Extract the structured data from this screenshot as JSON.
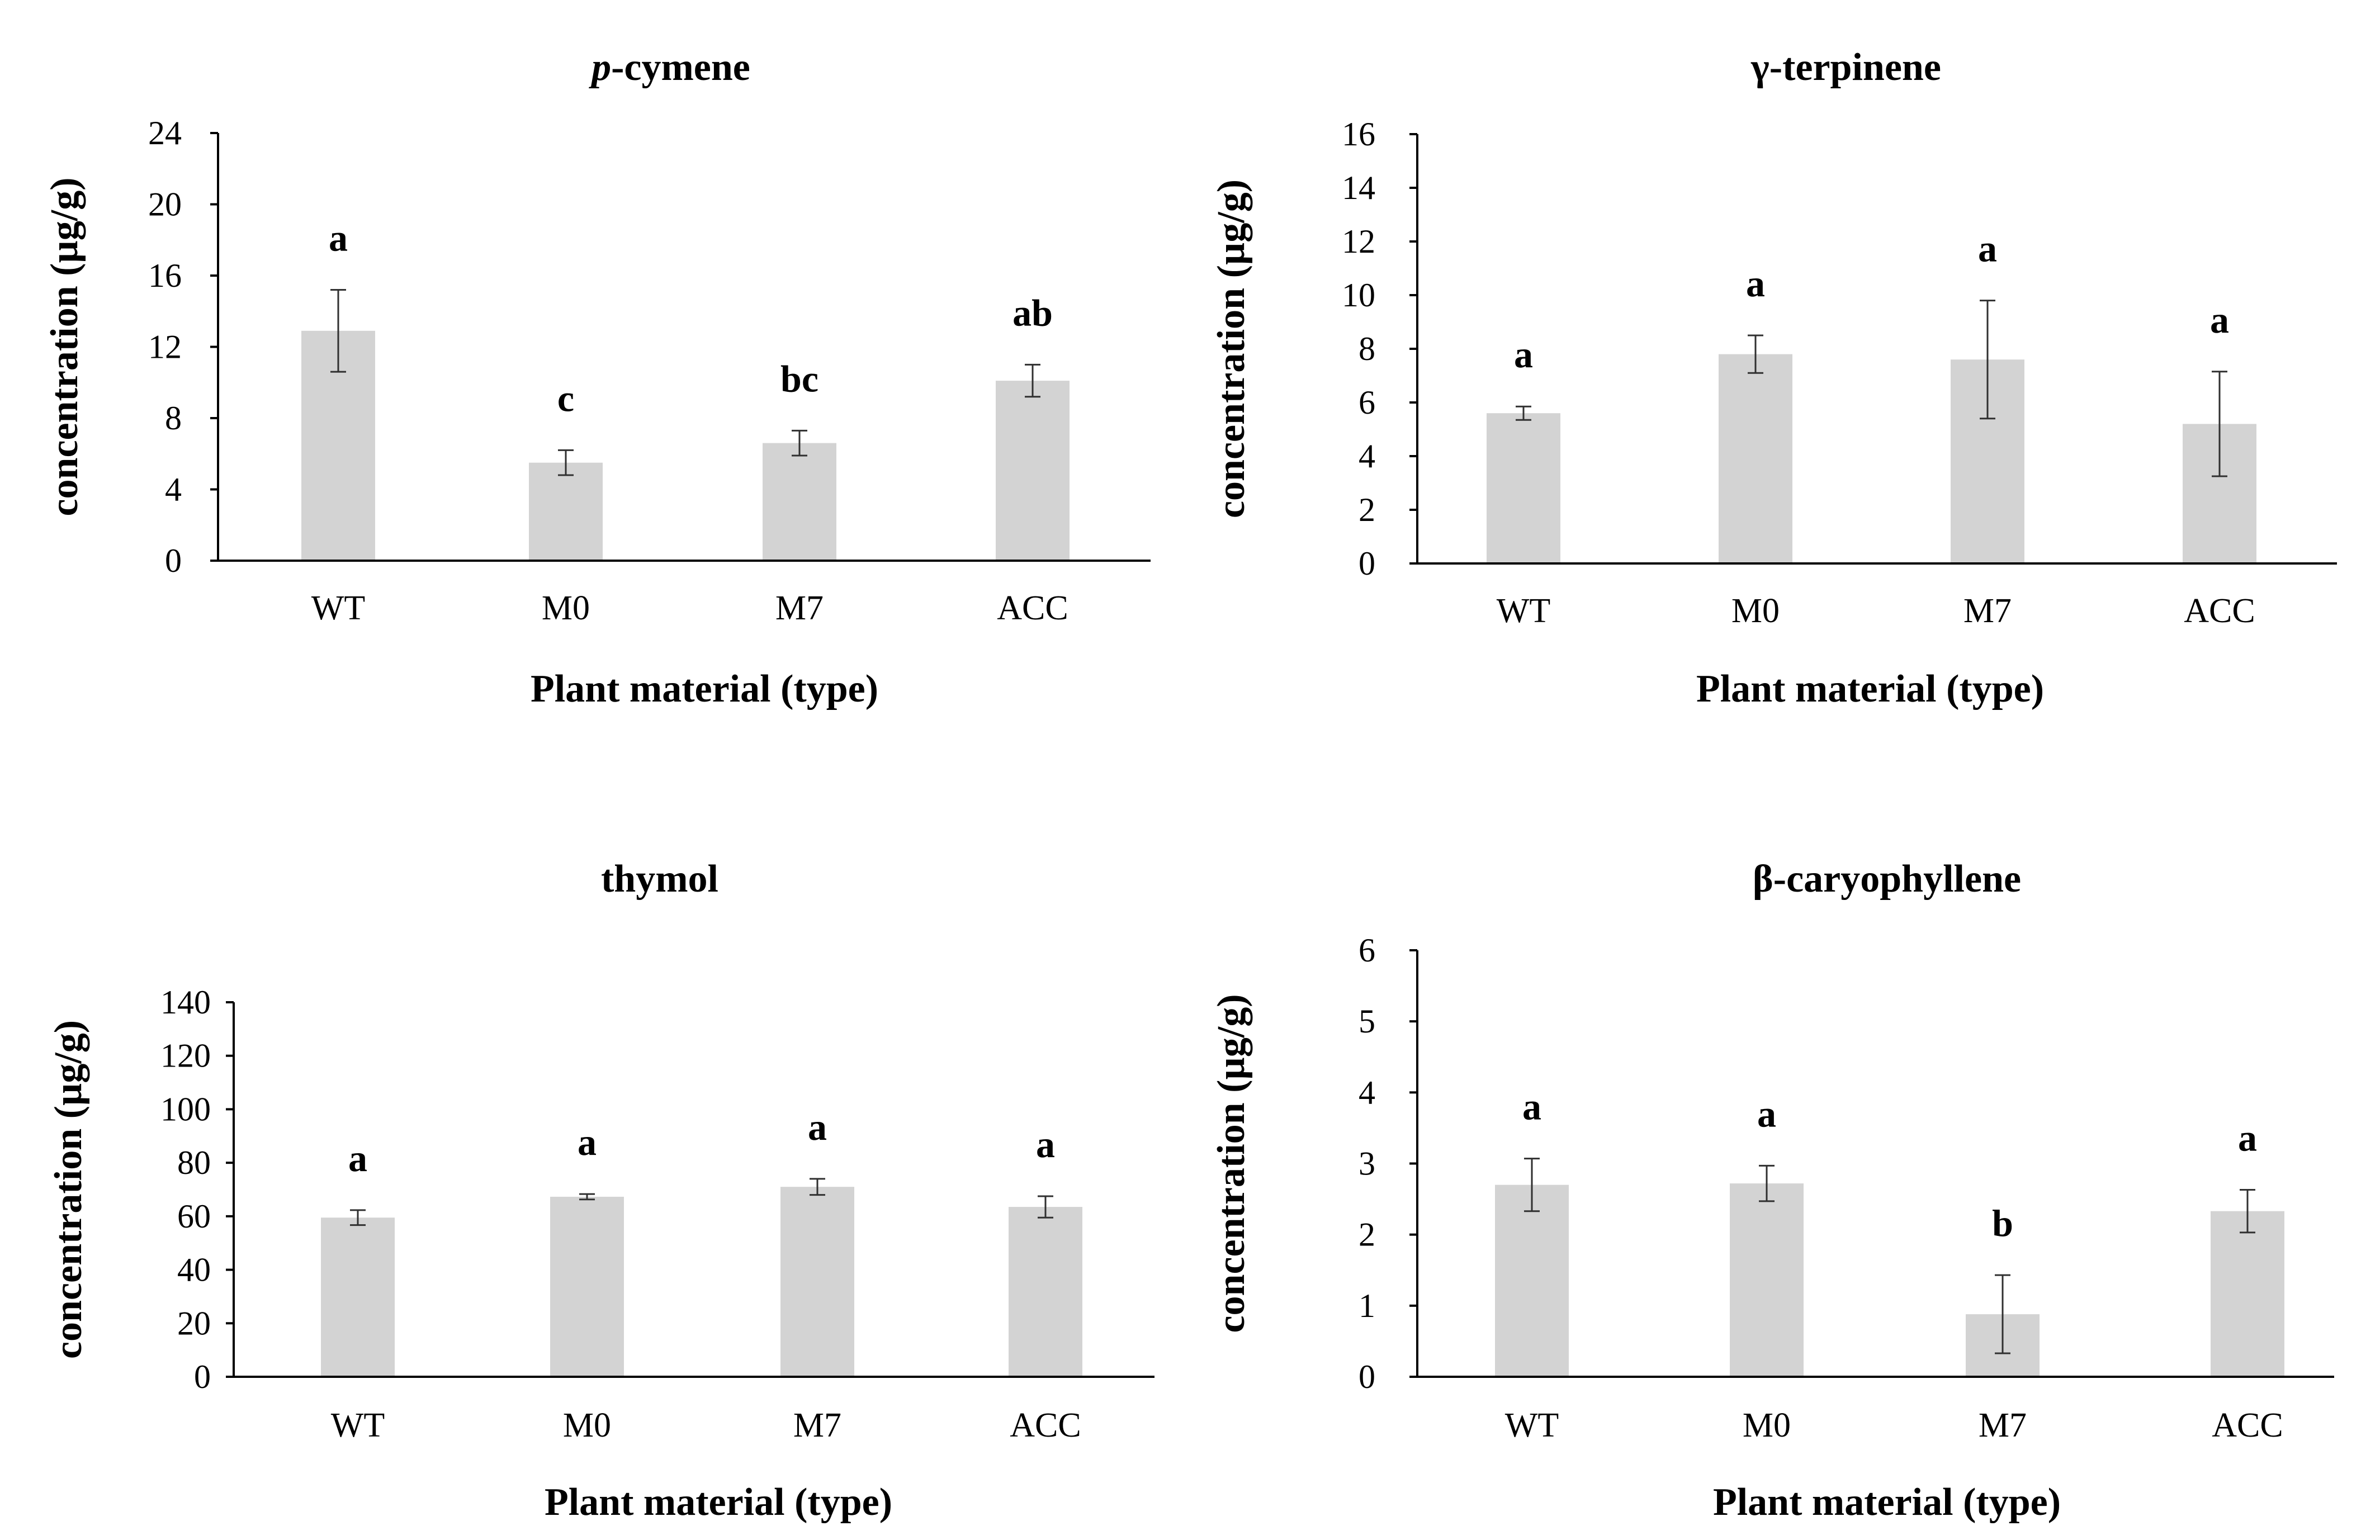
{
  "chart_data": [
    {
      "type": "bar",
      "title": "p-cymene",
      "title_prefix_italic": "p",
      "title_rest": "-cymene",
      "xlabel": "Plant material (type)",
      "ylabel": "concentration (µg/g)",
      "categories": [
        "WT",
        "M0",
        "M7",
        "ACC"
      ],
      "values": [
        12.9,
        5.5,
        6.6,
        10.1
      ],
      "errors": [
        2.3,
        0.7,
        0.7,
        0.9
      ],
      "significance": [
        "a",
        "c",
        "bc",
        "ab"
      ],
      "ylim": [
        0,
        24
      ],
      "yticks": [
        0,
        4,
        8,
        12,
        16,
        20,
        24
      ],
      "bar_color": "#d3d3d3"
    },
    {
      "type": "bar",
      "title": "γ-terpinene",
      "xlabel": "Plant material (type)",
      "ylabel": "concentration (µg/g)",
      "categories": [
        "WT",
        "M0",
        "M7",
        "ACC"
      ],
      "values": [
        5.6,
        7.8,
        7.6,
        5.2
      ],
      "errors": [
        0.25,
        0.7,
        2.2,
        1.95
      ],
      "significance": [
        "a",
        "a",
        "a",
        "a"
      ],
      "ylim": [
        0,
        16
      ],
      "yticks": [
        0,
        2,
        4,
        6,
        8,
        10,
        12,
        14,
        16
      ],
      "bar_color": "#d3d3d3"
    },
    {
      "type": "bar",
      "title": "thymol",
      "xlabel": "Plant material (type)",
      "ylabel": "concentration (µg/g)",
      "categories": [
        "WT",
        "M0",
        "M7",
        "ACC"
      ],
      "values": [
        59.5,
        67.3,
        71,
        63.5
      ],
      "errors": [
        2.8,
        1,
        3,
        4
      ],
      "significance": [
        "a",
        "a",
        "a",
        "a"
      ],
      "ylim": [
        0,
        140
      ],
      "yticks": [
        0,
        20,
        40,
        60,
        80,
        100,
        120,
        140
      ],
      "bar_color": "#d3d3d3"
    },
    {
      "type": "bar",
      "title": "β-caryophyllene",
      "xlabel": "Plant material (type)",
      "ylabel": "concentration (µg/g)",
      "categories": [
        "WT",
        "M0",
        "M7",
        "ACC"
      ],
      "values": [
        2.7,
        2.72,
        0.88,
        2.33
      ],
      "errors": [
        0.37,
        0.25,
        0.55,
        0.3
      ],
      "significance": [
        "a",
        "a",
        "b",
        "a"
      ],
      "ylim": [
        0,
        6
      ],
      "yticks": [
        0,
        1,
        2,
        3,
        4,
        5,
        6
      ],
      "bar_color": "#d3d3d3"
    }
  ]
}
